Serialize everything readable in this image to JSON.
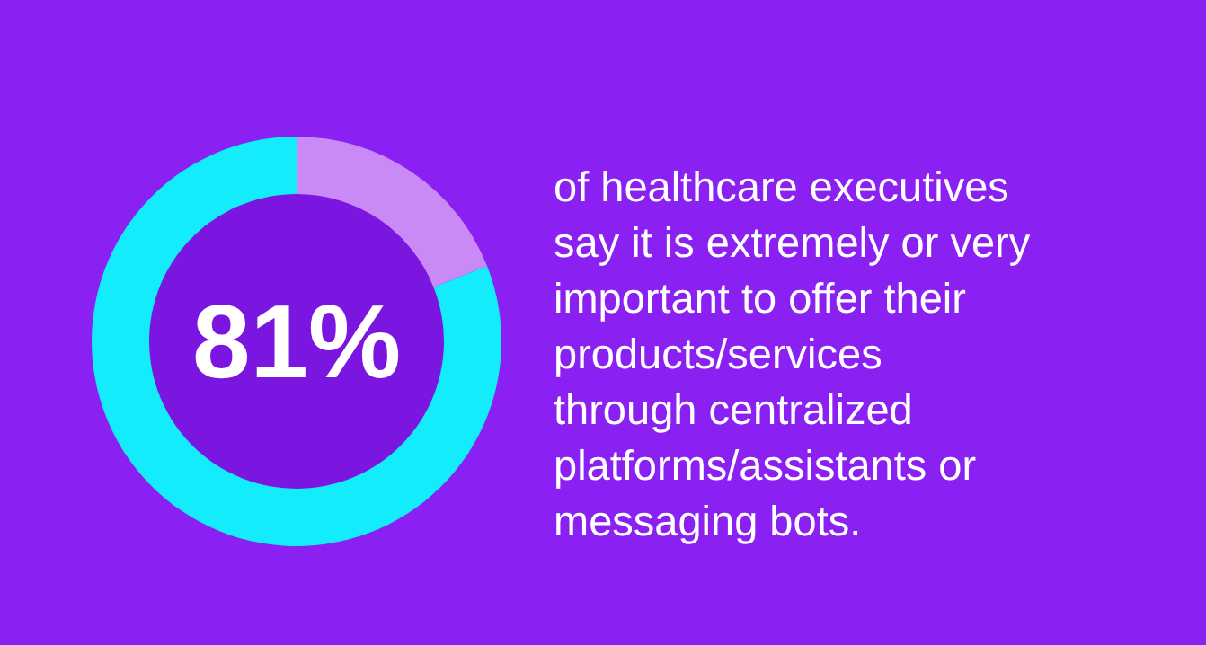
{
  "chart_data": {
    "type": "donut",
    "categories": [
      null,
      null
    ],
    "values": [
      81,
      19
    ],
    "colors": [
      "#12ecfb",
      "#c98af5"
    ],
    "value_labels": [
      "81%",
      null
    ],
    "annotations": [
      "of healthcare executives say it is extremely or very important to offer their products/services through centralized platforms/assistants or messaging bots."
    ]
  }
}
